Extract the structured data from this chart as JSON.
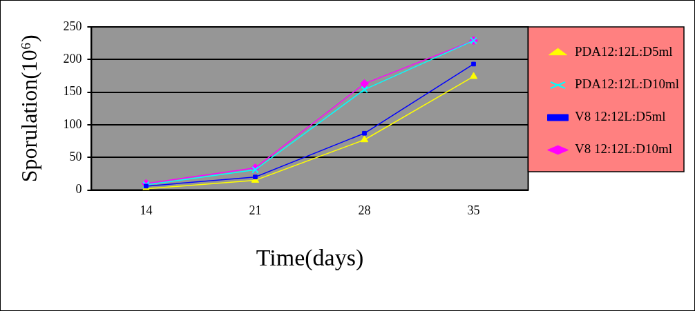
{
  "chart_data": {
    "type": "line",
    "xlabel": "Time(days)",
    "ylabel": "Sporulation(10⁶)",
    "categories": [
      "14",
      "21",
      "28",
      "35"
    ],
    "series": [
      {
        "name": "PDA12:12L:D5ml",
        "color": "#ffff00",
        "marker": "triangle",
        "values": [
          2,
          15,
          77,
          174
        ]
      },
      {
        "name": "PDA12:12L:D10ml",
        "color": "#00ffff",
        "marker": "cross",
        "values": [
          8,
          31,
          154,
          229
        ]
      },
      {
        "name": "V8 12:12L:D5ml",
        "color": "#0000ff",
        "marker": "square",
        "values": [
          6,
          20,
          87,
          193
        ]
      },
      {
        "name": "V8 12:12L:D10ml",
        "color": "#ff00ff",
        "marker": "diamond",
        "values": [
          10,
          34,
          163,
          229
        ]
      }
    ],
    "ylim": [
      0,
      250
    ],
    "yticks": [
      0,
      50,
      100,
      150,
      200,
      250
    ],
    "grid": "y",
    "legend": "right"
  }
}
